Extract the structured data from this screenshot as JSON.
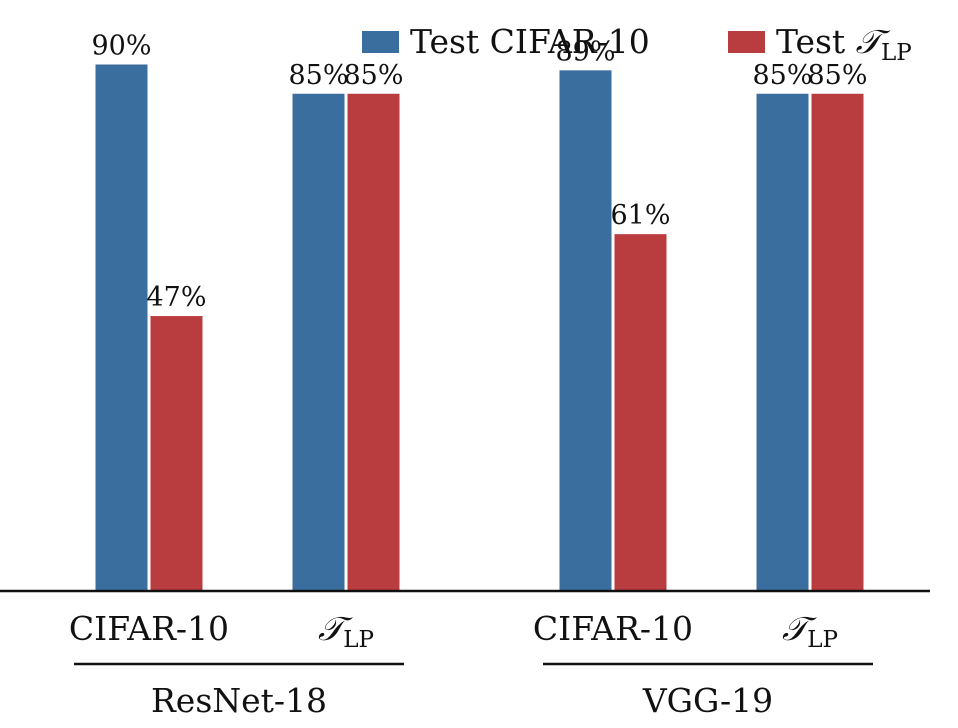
{
  "chart_data": {
    "type": "bar",
    "ylim": [
      0,
      100
    ],
    "grid": false,
    "legend_placement": "top-right",
    "legend": [
      {
        "name": "Test CIFAR-10",
        "color": "#3a6e9f"
      },
      {
        "name_main": "Test ",
        "name_symbol": "𝒯",
        "name_sub": "LP",
        "color": "#b93c3e"
      }
    ],
    "groups": [
      {
        "name": "ResNet-18",
        "categories": [
          {
            "label": "CIFAR-10",
            "values": [
              90,
              47
            ],
            "value_labels": [
              "90%",
              "47%"
            ]
          },
          {
            "label_symbol": "𝒯",
            "label_sub": "LP",
            "values": [
              85,
              85
            ],
            "value_labels": [
              "85%",
              "85%"
            ]
          }
        ]
      },
      {
        "name": "VGG-19",
        "categories": [
          {
            "label": "CIFAR-10",
            "values": [
              89,
              61
            ],
            "value_labels": [
              "89%",
              "61%"
            ]
          },
          {
            "label_symbol": "𝒯",
            "label_sub": "LP",
            "values": [
              85,
              85
            ],
            "value_labels": [
              "85%",
              "85%"
            ]
          }
        ]
      }
    ]
  }
}
